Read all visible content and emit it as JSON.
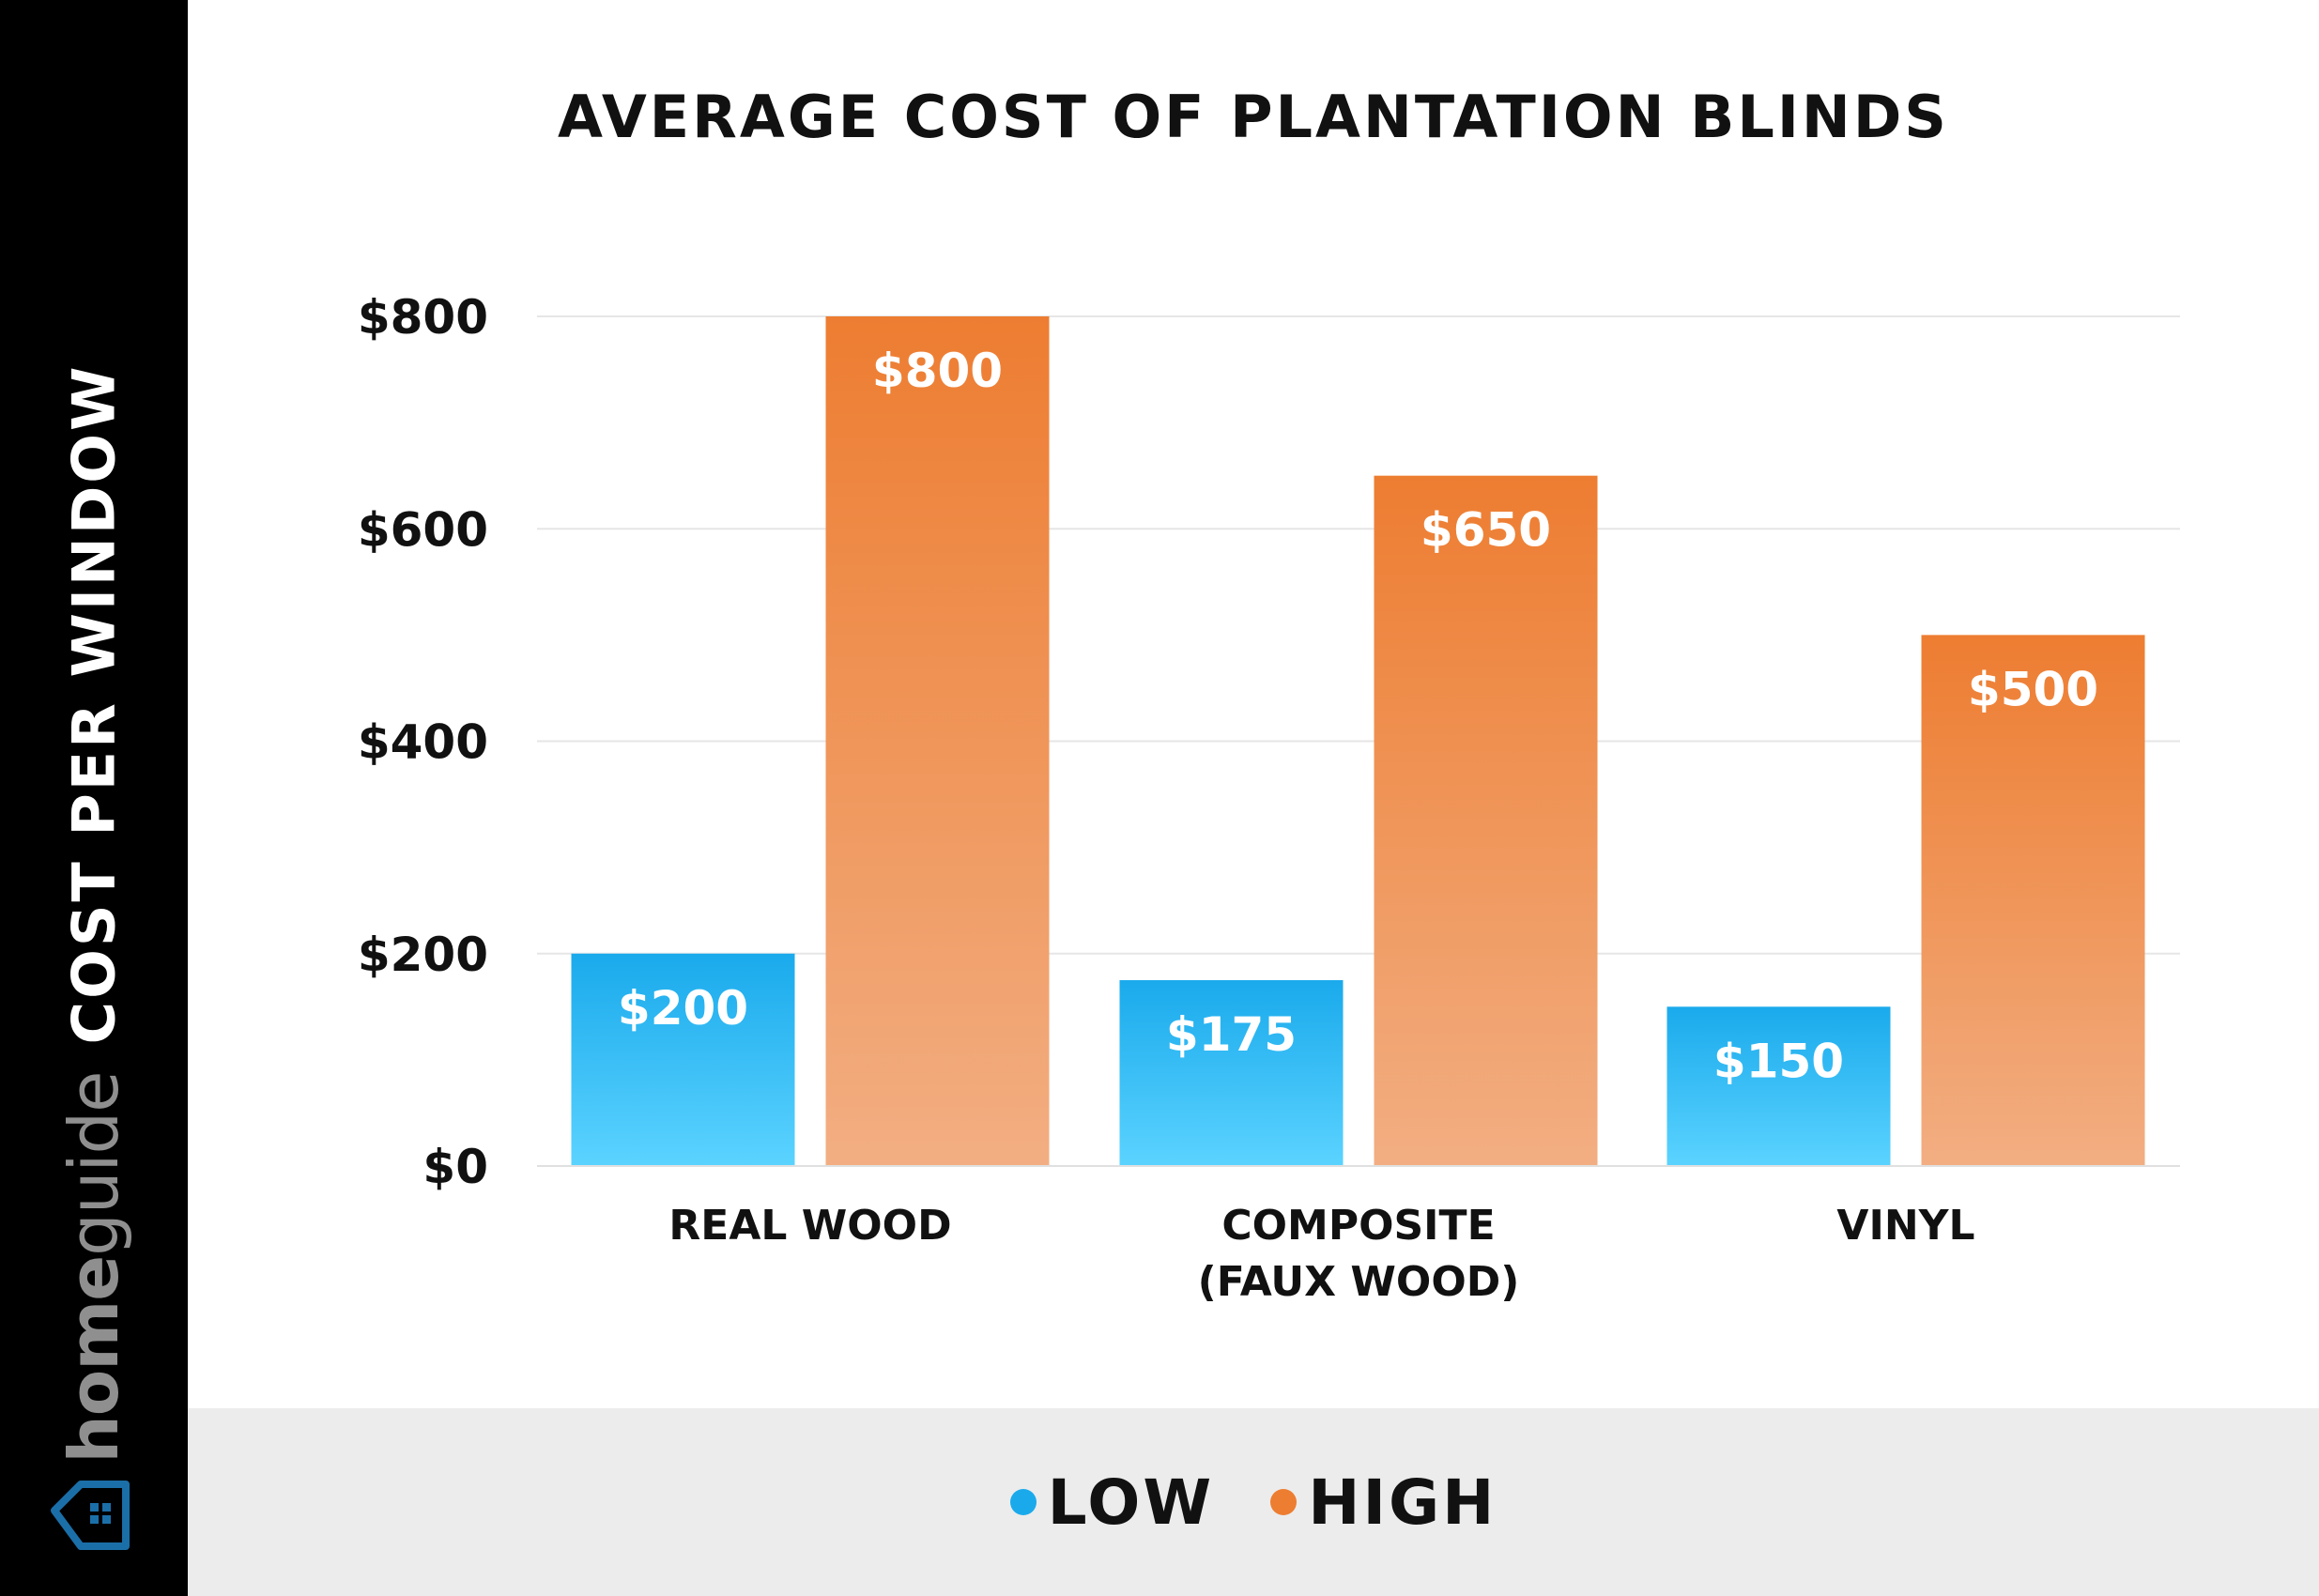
{
  "sidebar": {
    "ylabel": "COST PER WINDOW",
    "brand_bold": "home",
    "brand_light": "guide"
  },
  "colors": {
    "low_top": "#1aaaec",
    "low_bottom": "#5bd3ff",
    "high_top": "#ed7d31",
    "high_bottom": "#f2ae82",
    "low_dot": "#1aaaec",
    "high_dot": "#ed7d31"
  },
  "chart_data": {
    "type": "bar",
    "title": "AVERAGE COST OF PLANTATION BLINDS",
    "xlabel": "",
    "ylabel": "COST PER WINDOW",
    "categories": [
      [
        "REAL WOOD"
      ],
      [
        "COMPOSITE",
        "(FAUX WOOD)"
      ],
      [
        "VINYL"
      ]
    ],
    "series": [
      {
        "name": "LOW",
        "values": [
          200,
          175,
          150
        ],
        "labels": [
          "$200",
          "$175",
          "$150"
        ]
      },
      {
        "name": "HIGH",
        "values": [
          800,
          650,
          500
        ],
        "labels": [
          "$800",
          "$650",
          "$500"
        ]
      }
    ],
    "ylim": [
      0,
      800
    ],
    "yticks": [
      0,
      200,
      400,
      600,
      800
    ],
    "ytick_labels": [
      "$0",
      "$200",
      "$400",
      "$600",
      "$800"
    ],
    "grid": true,
    "legend_position": "bottom"
  }
}
